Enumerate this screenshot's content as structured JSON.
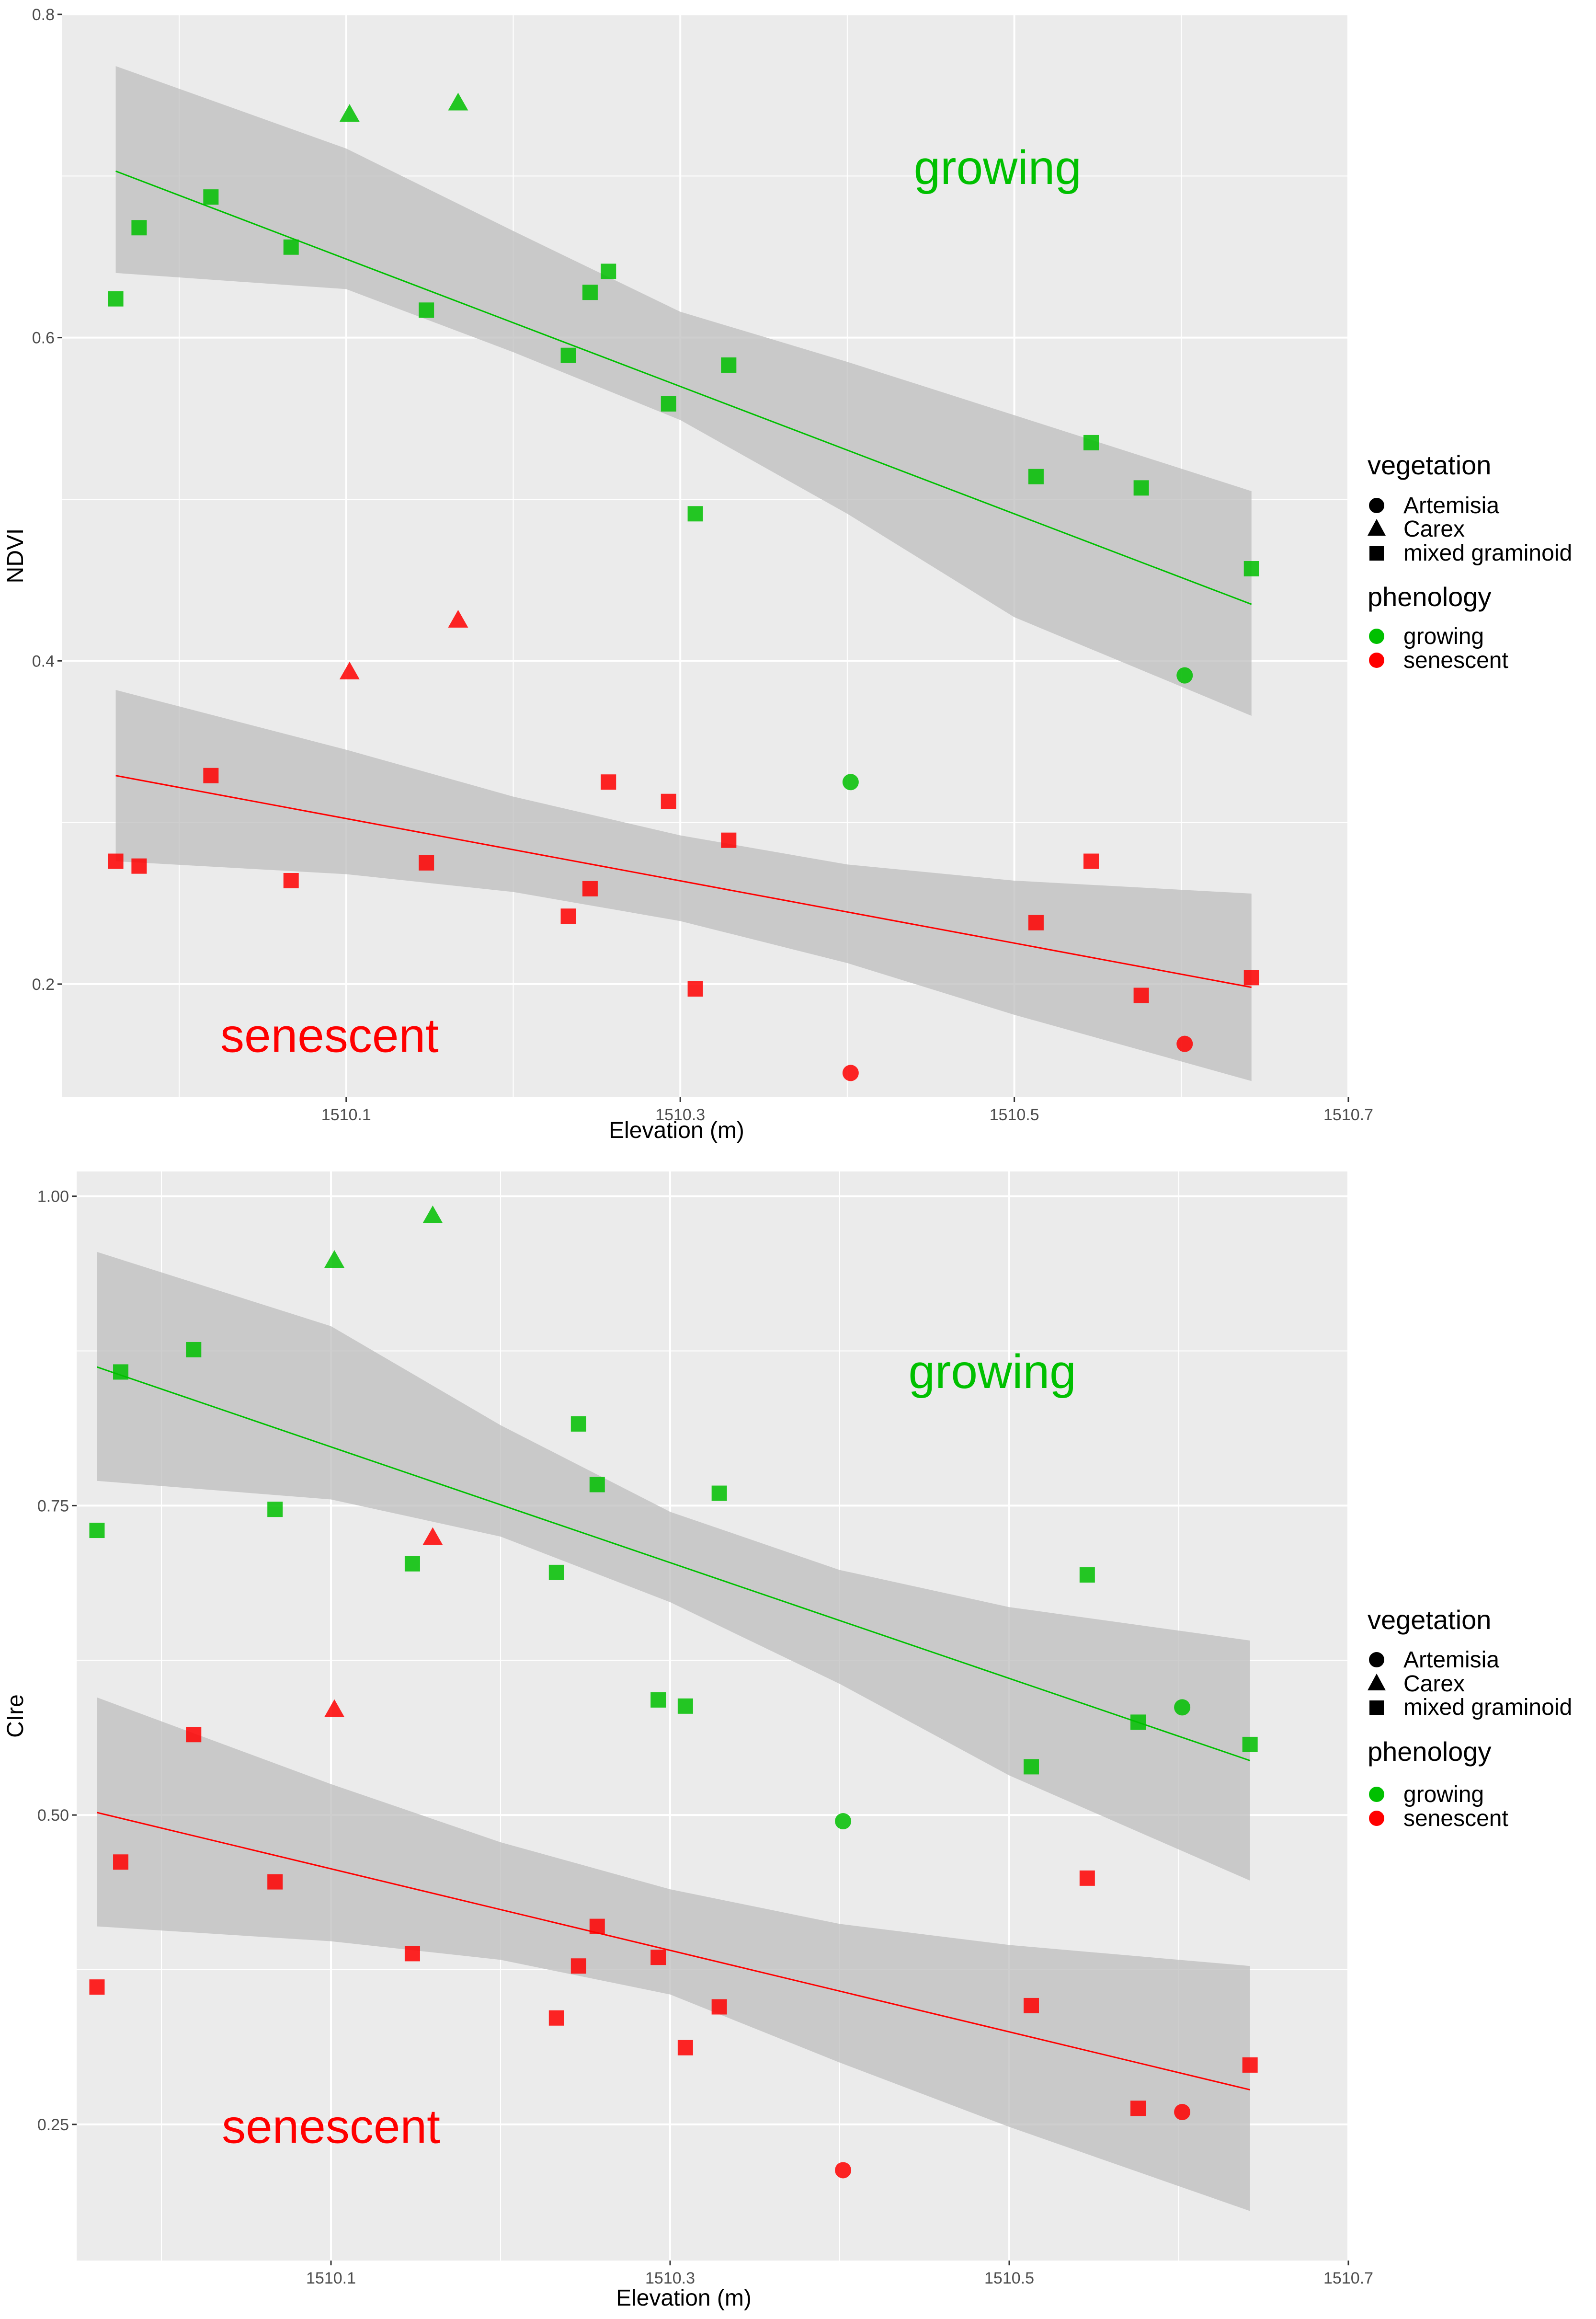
{
  "colors": {
    "growing": "#00c000",
    "senescent": "#ff0000",
    "panel_bg": "#ebebeb",
    "grid": "#ffffff",
    "ribbon": "#bdbdbd"
  },
  "legend": {
    "vegetation_title": "vegetation",
    "vegetation_items": [
      {
        "label": "Artemisia",
        "shape": "circle"
      },
      {
        "label": "Carex",
        "shape": "triangle"
      },
      {
        "label": "mixed graminoid",
        "shape": "square"
      }
    ],
    "phenology_title": "phenology",
    "phenology_items": [
      {
        "label": "growing",
        "color": "#00c000"
      },
      {
        "label": "senescent",
        "color": "#ff0000"
      }
    ]
  },
  "chart_data": [
    {
      "type": "scatter",
      "xlabel": "Elevation (m)",
      "ylabel": "NDVI",
      "xlim": [
        1509.93,
        1510.7
      ],
      "ylim": [
        0.13,
        0.8
      ],
      "x_ticks": [
        "1510.1",
        "1510.3",
        "1510.5",
        "1510.7"
      ],
      "x_tick_values": [
        1510.1,
        1510.3,
        1510.5,
        1510.7
      ],
      "y_ticks": [
        "0.2",
        "0.4",
        "0.6",
        "0.8"
      ],
      "y_tick_values": [
        0.2,
        0.4,
        0.6,
        0.8
      ],
      "grid": true,
      "annotations": [
        {
          "text": "growing",
          "x": 1510.49,
          "y": 0.695,
          "color": "#00c000"
        },
        {
          "text": "senescent",
          "x": 1510.09,
          "y": 0.158,
          "color": "#ff0000"
        }
      ],
      "series": [
        {
          "name": "growing",
          "color": "#00c000",
          "points": [
            {
              "x": 1509.962,
              "y": 0.624,
              "v": "mixed graminoid"
            },
            {
              "x": 1509.976,
              "y": 0.668,
              "v": "mixed graminoid"
            },
            {
              "x": 1510.019,
              "y": 0.687,
              "v": "mixed graminoid"
            },
            {
              "x": 1510.067,
              "y": 0.656,
              "v": "mixed graminoid"
            },
            {
              "x": 1510.102,
              "y": 0.738,
              "v": "Carex"
            },
            {
              "x": 1510.148,
              "y": 0.617,
              "v": "mixed graminoid"
            },
            {
              "x": 1510.167,
              "y": 0.745,
              "v": "Carex"
            },
            {
              "x": 1510.233,
              "y": 0.589,
              "v": "mixed graminoid"
            },
            {
              "x": 1510.246,
              "y": 0.628,
              "v": "mixed graminoid"
            },
            {
              "x": 1510.257,
              "y": 0.641,
              "v": "mixed graminoid"
            },
            {
              "x": 1510.293,
              "y": 0.559,
              "v": "mixed graminoid"
            },
            {
              "x": 1510.309,
              "y": 0.491,
              "v": "mixed graminoid"
            },
            {
              "x": 1510.329,
              "y": 0.583,
              "v": "mixed graminoid"
            },
            {
              "x": 1510.402,
              "y": 0.325,
              "v": "Artemisia"
            },
            {
              "x": 1510.513,
              "y": 0.514,
              "v": "mixed graminoid"
            },
            {
              "x": 1510.546,
              "y": 0.535,
              "v": "mixed graminoid"
            },
            {
              "x": 1510.576,
              "y": 0.507,
              "v": "mixed graminoid"
            },
            {
              "x": 1510.602,
              "y": 0.391,
              "v": "Artemisia"
            },
            {
              "x": 1510.642,
              "y": 0.457,
              "v": "mixed graminoid"
            }
          ],
          "fit": {
            "x": [
              1509.962,
              1510.642
            ],
            "y": [
              0.703,
              0.435
            ]
          },
          "ci_upper": {
            "x": [
              1509.962,
              1510.1,
              1510.2,
              1510.3,
              1510.4,
              1510.5,
              1510.642
            ],
            "y": [
              0.768,
              0.717,
              0.666,
              0.616,
              0.585,
              0.552,
              0.505
            ]
          },
          "ci_lower": {
            "x": [
              1509.962,
              1510.1,
              1510.2,
              1510.3,
              1510.4,
              1510.5,
              1510.642
            ],
            "y": [
              0.64,
              0.63,
              0.591,
              0.549,
              0.491,
              0.427,
              0.366
            ]
          }
        },
        {
          "name": "senescent",
          "color": "#ff0000",
          "points": [
            {
              "x": 1509.962,
              "y": 0.276,
              "v": "mixed graminoid"
            },
            {
              "x": 1509.976,
              "y": 0.273,
              "v": "mixed graminoid"
            },
            {
              "x": 1510.019,
              "y": 0.329,
              "v": "mixed graminoid"
            },
            {
              "x": 1510.067,
              "y": 0.264,
              "v": "mixed graminoid"
            },
            {
              "x": 1510.102,
              "y": 0.393,
              "v": "Carex"
            },
            {
              "x": 1510.148,
              "y": 0.275,
              "v": "mixed graminoid"
            },
            {
              "x": 1510.167,
              "y": 0.425,
              "v": "Carex"
            },
            {
              "x": 1510.233,
              "y": 0.242,
              "v": "mixed graminoid"
            },
            {
              "x": 1510.246,
              "y": 0.259,
              "v": "mixed graminoid"
            },
            {
              "x": 1510.257,
              "y": 0.325,
              "v": "mixed graminoid"
            },
            {
              "x": 1510.293,
              "y": 0.313,
              "v": "mixed graminoid"
            },
            {
              "x": 1510.309,
              "y": 0.197,
              "v": "mixed graminoid"
            },
            {
              "x": 1510.329,
              "y": 0.289,
              "v": "mixed graminoid"
            },
            {
              "x": 1510.402,
              "y": 0.145,
              "v": "Artemisia"
            },
            {
              "x": 1510.513,
              "y": 0.238,
              "v": "mixed graminoid"
            },
            {
              "x": 1510.546,
              "y": 0.276,
              "v": "mixed graminoid"
            },
            {
              "x": 1510.576,
              "y": 0.193,
              "v": "mixed graminoid"
            },
            {
              "x": 1510.602,
              "y": 0.163,
              "v": "Artemisia"
            },
            {
              "x": 1510.642,
              "y": 0.204,
              "v": "mixed graminoid"
            }
          ],
          "fit": {
            "x": [
              1509.962,
              1510.642
            ],
            "y": [
              0.329,
              0.198
            ]
          },
          "ci_upper": {
            "x": [
              1509.962,
              1510.1,
              1510.2,
              1510.3,
              1510.4,
              1510.5,
              1510.642
            ],
            "y": [
              0.382,
              0.345,
              0.316,
              0.292,
              0.274,
              0.264,
              0.256
            ]
          },
          "ci_lower": {
            "x": [
              1509.962,
              1510.1,
              1510.2,
              1510.3,
              1510.4,
              1510.5,
              1510.642
            ],
            "y": [
              0.276,
              0.268,
              0.257,
              0.239,
              0.213,
              0.181,
              0.14
            ]
          }
        }
      ]
    },
    {
      "type": "scatter",
      "xlabel": "Elevation (m)",
      "ylabel": "CIre",
      "xlim": [
        1509.95,
        1510.7
      ],
      "ylim": [
        0.14,
        1.02
      ],
      "x_ticks": [
        "1510.1",
        "1510.3",
        "1510.5",
        "1510.7"
      ],
      "x_tick_values": [
        1510.1,
        1510.3,
        1510.5,
        1510.7
      ],
      "y_ticks": [
        "0.25",
        "0.50",
        "0.75",
        "1.00"
      ],
      "y_tick_values": [
        0.25,
        0.5,
        0.75,
        1.0
      ],
      "grid": true,
      "annotations": [
        {
          "text": "growing",
          "x": 1510.49,
          "y": 0.845,
          "color": "#00c000"
        },
        {
          "text": "senescent",
          "x": 1510.1,
          "y": 0.235,
          "color": "#ff0000"
        }
      ],
      "series": [
        {
          "name": "growing",
          "color": "#00c000",
          "points": [
            {
              "x": 1509.962,
              "y": 0.73,
              "v": "mixed graminoid"
            },
            {
              "x": 1509.976,
              "y": 0.858,
              "v": "mixed graminoid"
            },
            {
              "x": 1510.019,
              "y": 0.876,
              "v": "mixed graminoid"
            },
            {
              "x": 1510.067,
              "y": 0.747,
              "v": "mixed graminoid"
            },
            {
              "x": 1510.102,
              "y": 0.948,
              "v": "Carex"
            },
            {
              "x": 1510.148,
              "y": 0.703,
              "v": "mixed graminoid"
            },
            {
              "x": 1510.16,
              "y": 0.984,
              "v": "Carex"
            },
            {
              "x": 1510.233,
              "y": 0.696,
              "v": "mixed graminoid"
            },
            {
              "x": 1510.246,
              "y": 0.816,
              "v": "mixed graminoid"
            },
            {
              "x": 1510.257,
              "y": 0.767,
              "v": "mixed graminoid"
            },
            {
              "x": 1510.293,
              "y": 0.593,
              "v": "mixed graminoid"
            },
            {
              "x": 1510.309,
              "y": 0.588,
              "v": "mixed graminoid"
            },
            {
              "x": 1510.329,
              "y": 0.76,
              "v": "mixed graminoid"
            },
            {
              "x": 1510.402,
              "y": 0.495,
              "v": "Artemisia"
            },
            {
              "x": 1510.513,
              "y": 0.539,
              "v": "mixed graminoid"
            },
            {
              "x": 1510.546,
              "y": 0.694,
              "v": "mixed graminoid"
            },
            {
              "x": 1510.576,
              "y": 0.575,
              "v": "mixed graminoid"
            },
            {
              "x": 1510.602,
              "y": 0.587,
              "v": "Artemisia"
            },
            {
              "x": 1510.642,
              "y": 0.557,
              "v": "mixed graminoid"
            }
          ],
          "fit": {
            "x": [
              1509.962,
              1510.642
            ],
            "y": [
              0.862,
              0.544
            ]
          },
          "ci_upper": {
            "x": [
              1509.962,
              1510.1,
              1510.2,
              1510.3,
              1510.4,
              1510.5,
              1510.642
            ],
            "y": [
              0.955,
              0.895,
              0.815,
              0.745,
              0.698,
              0.668,
              0.641
            ]
          },
          "ci_lower": {
            "x": [
              1509.962,
              1510.1,
              1510.2,
              1510.3,
              1510.4,
              1510.5,
              1510.642
            ],
            "y": [
              0.77,
              0.755,
              0.725,
              0.672,
              0.606,
              0.532,
              0.447
            ]
          }
        },
        {
          "name": "senescent",
          "color": "#ff0000",
          "points": [
            {
              "x": 1509.962,
              "y": 0.361,
              "v": "mixed graminoid"
            },
            {
              "x": 1509.976,
              "y": 0.462,
              "v": "mixed graminoid"
            },
            {
              "x": 1510.019,
              "y": 0.565,
              "v": "mixed graminoid"
            },
            {
              "x": 1510.067,
              "y": 0.446,
              "v": "mixed graminoid"
            },
            {
              "x": 1510.102,
              "y": 0.585,
              "v": "Carex"
            },
            {
              "x": 1510.148,
              "y": 0.388,
              "v": "mixed graminoid"
            },
            {
              "x": 1510.16,
              "y": 0.724,
              "v": "Carex"
            },
            {
              "x": 1510.233,
              "y": 0.336,
              "v": "mixed graminoid"
            },
            {
              "x": 1510.246,
              "y": 0.378,
              "v": "mixed graminoid"
            },
            {
              "x": 1510.257,
              "y": 0.41,
              "v": "mixed graminoid"
            },
            {
              "x": 1510.293,
              "y": 0.385,
              "v": "mixed graminoid"
            },
            {
              "x": 1510.309,
              "y": 0.312,
              "v": "mixed graminoid"
            },
            {
              "x": 1510.329,
              "y": 0.345,
              "v": "mixed graminoid"
            },
            {
              "x": 1510.402,
              "y": 0.213,
              "v": "Artemisia"
            },
            {
              "x": 1510.513,
              "y": 0.346,
              "v": "mixed graminoid"
            },
            {
              "x": 1510.546,
              "y": 0.449,
              "v": "mixed graminoid"
            },
            {
              "x": 1510.576,
              "y": 0.263,
              "v": "mixed graminoid"
            },
            {
              "x": 1510.602,
              "y": 0.26,
              "v": "Artemisia"
            },
            {
              "x": 1510.642,
              "y": 0.298,
              "v": "mixed graminoid"
            }
          ],
          "fit": {
            "x": [
              1509.962,
              1510.642
            ],
            "y": [
              0.502,
              0.278
            ]
          },
          "ci_upper": {
            "x": [
              1509.962,
              1510.1,
              1510.2,
              1510.3,
              1510.4,
              1510.5,
              1510.642
            ],
            "y": [
              0.595,
              0.525,
              0.478,
              0.44,
              0.412,
              0.395,
              0.378
            ]
          },
          "ci_lower": {
            "x": [
              1509.962,
              1510.1,
              1510.2,
              1510.3,
              1510.4,
              1510.5,
              1510.642
            ],
            "y": [
              0.41,
              0.398,
              0.383,
              0.355,
              0.3,
              0.248,
              0.18
            ]
          }
        }
      ]
    }
  ]
}
